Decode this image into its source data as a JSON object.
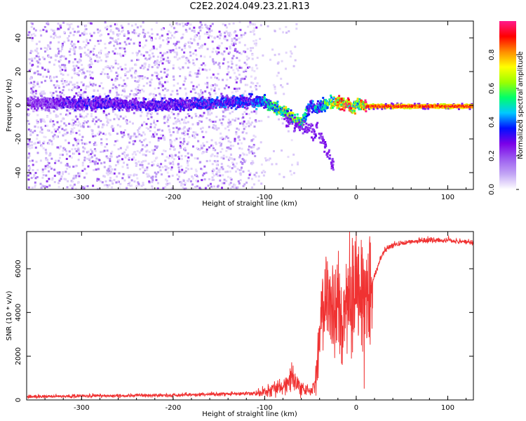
{
  "title": "C2E2.2024.049.23.21.R13",
  "chart_data": [
    {
      "type": "heatmap",
      "xlabel": "Height of straight line (km)",
      "ylabel": "Frequency (Hz)",
      "xlim": [
        -360,
        128
      ],
      "ylim": [
        -50,
        50
      ],
      "x_ticks": [
        -300,
        -200,
        -100,
        0,
        100
      ],
      "y_ticks": [
        -40,
        -20,
        0,
        20,
        40
      ],
      "colorbar": {
        "label": "Normalized spectral amplitude",
        "range": [
          0,
          1
        ],
        "ticks": [
          0.0,
          0.2,
          0.4,
          0.6,
          0.8
        ]
      },
      "colormap_stops": [
        "#ffffff",
        "#c3a6f5",
        "#9c5cf0",
        "#7a00e8",
        "#0010ff",
        "#00c8ff",
        "#00ff6a",
        "#9cff00",
        "#ffff00",
        "#ff8c00",
        "#ff0000",
        "#ff1a8c"
      ],
      "signal_ridge": {
        "description_points_x": [
          -355,
          -300,
          -250,
          -200,
          -150,
          -115,
          -100,
          -90,
          -80,
          -70,
          -60,
          -55,
          -50,
          -45,
          -40,
          -35,
          -30,
          -20,
          -10,
          -5,
          0,
          10,
          50,
          100,
          128
        ],
        "center_freq": [
          2,
          2,
          1,
          1,
          2,
          3,
          2,
          -1,
          -3,
          -7,
          -10,
          -3,
          1,
          -2,
          0,
          1,
          2,
          2,
          1,
          -2,
          2,
          0,
          0,
          0,
          0
        ],
        "peak_amplitude": [
          0.22,
          0.3,
          0.28,
          0.3,
          0.35,
          0.35,
          0.45,
          0.55,
          0.6,
          0.62,
          0.55,
          0.45,
          0.3,
          0.45,
          0.4,
          0.55,
          0.62,
          0.8,
          0.9,
          0.75,
          0.6,
          0.95,
          0.95,
          0.95,
          0.95
        ]
      },
      "noise_boundary_x": -110,
      "grid": false
    },
    {
      "type": "line",
      "xlabel": "Height of straight line (km)",
      "ylabel": "SNR (10 * v/v)",
      "xlim": [
        -360,
        128
      ],
      "ylim": [
        0,
        7700
      ],
      "x_ticks": [
        -300,
        -200,
        -100,
        0,
        100
      ],
      "y_ticks": [
        0,
        2000,
        4000,
        6000
      ],
      "color": "#f03232",
      "series": [
        {
          "x": [
            -360,
            -300,
            -250,
            -200,
            -160,
            -130,
            -110,
            -100,
            -90,
            -80,
            -70,
            -60,
            -50,
            -45,
            -40,
            -35,
            -30,
            -25,
            -20,
            -15,
            -10,
            -5,
            0,
            10,
            20,
            30,
            40,
            60,
            80,
            100,
            128
          ],
          "values": [
            150,
            180,
            200,
            210,
            260,
            280,
            300,
            350,
            500,
            700,
            1000,
            600,
            350,
            700,
            2600,
            4600,
            4000,
            3500,
            4200,
            3300,
            4700,
            4500,
            5400,
            4600,
            5700,
            6800,
            7100,
            7250,
            7300,
            7300,
            7200
          ]
        }
      ],
      "grid": false
    }
  ]
}
